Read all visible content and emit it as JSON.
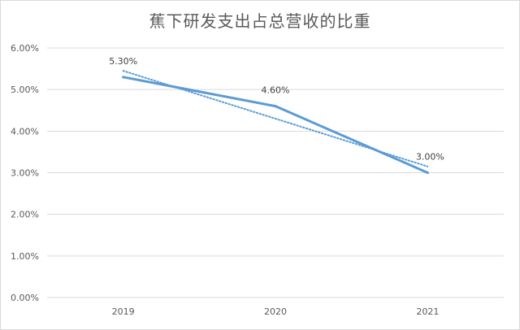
{
  "chart_data": {
    "type": "line",
    "title": "蕉下研发支出占总营收的比重",
    "xlabel": "",
    "ylabel": "",
    "categories": [
      "2019",
      "2020",
      "2021"
    ],
    "series": [
      {
        "values": [
          5.3,
          4.6,
          3.0
        ],
        "data_labels": [
          "5.30%",
          "4.60%",
          "3.00%"
        ],
        "color": "#5b9bd5"
      }
    ],
    "trendline": {
      "type": "linear",
      "style": "dotted",
      "color": "#5b9bd5"
    },
    "ylim": [
      0,
      6
    ],
    "yticks": [
      0,
      1,
      2,
      3,
      4,
      5,
      6
    ],
    "ytick_labels": [
      "0.00%",
      "1.00%",
      "2.00%",
      "3.00%",
      "4.00%",
      "5.00%",
      "6.00%"
    ],
    "grid": "horizontal",
    "legend": "none"
  }
}
